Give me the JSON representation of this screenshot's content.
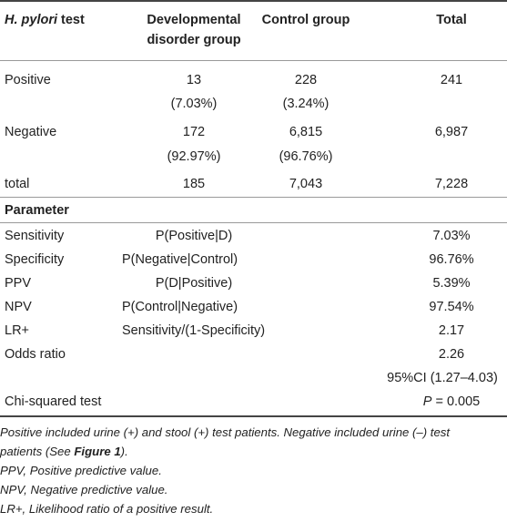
{
  "header": {
    "col1_italic": "H. pylori",
    "col1_rest": " test",
    "col2_line1": "Developmental",
    "col2_line2": "disorder group",
    "col3": "Control group",
    "col4": "Total"
  },
  "rows": [
    {
      "label": "Positive",
      "dev": "13",
      "dev_pct": "(7.03%)",
      "ctrl": "228",
      "ctrl_pct": "(3.24%)",
      "total": "241"
    },
    {
      "label": "Negative",
      "dev": "172",
      "dev_pct": "(92.97%)",
      "ctrl": "6,815",
      "ctrl_pct": "(96.76%)",
      "total": "6,987"
    },
    {
      "label": "total",
      "dev": "185",
      "ctrl": "7,043",
      "total": "7,228"
    }
  ],
  "parameter_header": "Parameter",
  "parameters": [
    {
      "name": "Sensitivity",
      "formula": "P(Positive|D)",
      "value": "7.03%"
    },
    {
      "name": "Specificity",
      "formula": "P(Negative|Control)",
      "value": "96.76%"
    },
    {
      "name": "PPV",
      "formula": "P(D|Positive)",
      "value": "5.39%"
    },
    {
      "name": "NPV",
      "formula": "P(Control|Negative)",
      "value": "97.54%"
    },
    {
      "name": "LR+",
      "formula": "Sensitivity/(1-Specificity)",
      "value": "2.17"
    },
    {
      "name": "Odds ratio",
      "formula": "",
      "value": "2.26"
    },
    {
      "name": "",
      "formula": "",
      "value": "95%CI (1.27–4.03)"
    }
  ],
  "chi": {
    "name": "Chi-squared test",
    "p_symbol": "P",
    "p_rest": " = 0.005"
  },
  "footnotes": {
    "line1_a": "Positive included urine (+) and stool (+) test patients. Negative included urine (–) test",
    "line2_a": "patients (See ",
    "line2_bold": "Figure 1",
    "line2_b": ").",
    "ppv": "PPV, Positive predictive value.",
    "npv": "NPV, Negative predictive value.",
    "lr": "LR+, Likelihood ratio of a positive result."
  }
}
